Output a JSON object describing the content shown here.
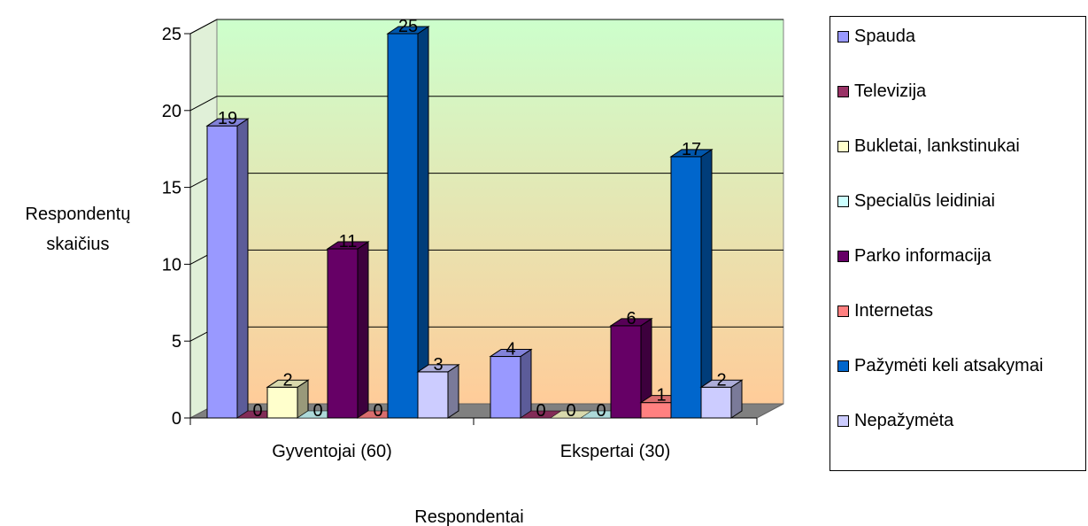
{
  "chart_data": {
    "type": "bar",
    "title": "",
    "xlabel": "Respondentai",
    "ylabel": "Respondentų skaičius",
    "ylim": [
      0,
      25
    ],
    "yticks": [
      0,
      5,
      10,
      15,
      20,
      25
    ],
    "grid": true,
    "legend_position": "right",
    "categories": [
      "Gyventojai (60)",
      "Ekspertai (30)"
    ],
    "series": [
      {
        "name": "Spauda",
        "color": "#9999ff",
        "values": [
          19,
          4
        ]
      },
      {
        "name": "Televizija",
        "color": "#993366",
        "values": [
          0,
          0
        ]
      },
      {
        "name": "Bukletai, lankstinukai",
        "color": "#ffffcc",
        "values": [
          2,
          0
        ]
      },
      {
        "name": "Specialūs leidiniai",
        "color": "#ccffff",
        "values": [
          0,
          0
        ]
      },
      {
        "name": "Parko informacija",
        "color": "#660066",
        "values": [
          11,
          6
        ]
      },
      {
        "name": "Internetas",
        "color": "#ff8080",
        "values": [
          0,
          1
        ]
      },
      {
        "name": "Pažymėti keli atsakymai",
        "color": "#0066cc",
        "values": [
          25,
          17
        ]
      },
      {
        "name": "Nepažymėta",
        "color": "#ccccff",
        "values": [
          3,
          2
        ]
      }
    ]
  }
}
